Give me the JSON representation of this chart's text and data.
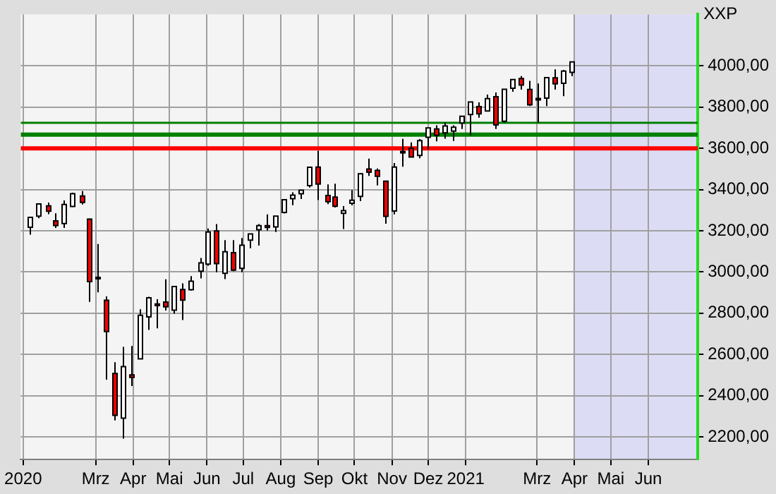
{
  "chart_data": {
    "type": "candlestick",
    "ylabel": "XXP",
    "x": [
      "2020-01-06",
      "2020-01-13",
      "2020-01-21",
      "2020-01-27",
      "2020-02-03",
      "2020-02-10",
      "2020-02-18",
      "2020-02-24",
      "2020-03-02",
      "2020-03-09",
      "2020-03-16",
      "2020-03-23",
      "2020-03-30",
      "2020-04-06",
      "2020-04-13",
      "2020-04-20",
      "2020-04-27",
      "2020-05-04",
      "2020-05-11",
      "2020-05-18",
      "2020-05-26",
      "2020-06-01",
      "2020-06-08",
      "2020-06-15",
      "2020-06-22",
      "2020-06-29",
      "2020-07-06",
      "2020-07-13",
      "2020-07-20",
      "2020-07-27",
      "2020-08-03",
      "2020-08-10",
      "2020-08-17",
      "2020-08-24",
      "2020-08-31",
      "2020-09-08",
      "2020-09-14",
      "2020-09-21",
      "2020-09-28",
      "2020-10-05",
      "2020-10-12",
      "2020-10-19",
      "2020-10-26",
      "2020-11-02",
      "2020-11-09",
      "2020-11-16",
      "2020-11-23",
      "2020-11-30",
      "2020-12-07",
      "2020-12-14",
      "2020-12-21",
      "2020-12-28",
      "2021-01-04",
      "2021-01-11",
      "2021-01-19",
      "2021-01-25",
      "2021-02-01",
      "2021-02-08",
      "2021-02-16",
      "2021-02-22",
      "2021-03-01",
      "2021-03-08",
      "2021-03-15",
      "2021-03-22",
      "2021-03-29"
    ],
    "ohlc": [
      [
        3217,
        3267,
        3181,
        3265
      ],
      [
        3271,
        3330,
        3261,
        3330
      ],
      [
        3321,
        3337,
        3281,
        3295
      ],
      [
        3248,
        3285,
        3214,
        3226
      ],
      [
        3235,
        3347,
        3214,
        3328
      ],
      [
        3318,
        3385,
        3316,
        3380
      ],
      [
        3369,
        3393,
        3328,
        3338
      ],
      [
        3257,
        3259,
        2855,
        2954
      ],
      [
        2974,
        3136,
        2901,
        2972
      ],
      [
        2863,
        2882,
        2478,
        2711
      ],
      [
        2508,
        2562,
        2280,
        2305
      ],
      [
        2291,
        2637,
        2192,
        2541
      ],
      [
        2501,
        2641,
        2447,
        2489
      ],
      [
        2579,
        2819,
        2577,
        2790
      ],
      [
        2782,
        2880,
        2719,
        2875
      ],
      [
        2845,
        2868,
        2727,
        2837
      ],
      [
        2854,
        2965,
        2813,
        2831
      ],
      [
        2815,
        2932,
        2798,
        2930
      ],
      [
        2915,
        2945,
        2767,
        2864
      ],
      [
        2914,
        2980,
        2910,
        2955
      ],
      [
        3004,
        3068,
        2969,
        3044
      ],
      [
        3038,
        3211,
        3031,
        3194
      ],
      [
        3199,
        3233,
        2999,
        3041
      ],
      [
        2994,
        3155,
        2966,
        3098
      ],
      [
        3094,
        3155,
        3004,
        3009
      ],
      [
        3018,
        3165,
        2999,
        3130
      ],
      [
        3155,
        3186,
        3115,
        3185
      ],
      [
        3205,
        3233,
        3128,
        3225
      ],
      [
        3225,
        3280,
        3201,
        3216
      ],
      [
        3219,
        3272,
        3194,
        3271
      ],
      [
        3289,
        3352,
        3284,
        3351
      ],
      [
        3356,
        3387,
        3324,
        3373
      ],
      [
        3380,
        3399,
        3354,
        3397
      ],
      [
        3419,
        3509,
        3410,
        3508
      ],
      [
        3509,
        3588,
        3349,
        3427
      ],
      [
        3371,
        3425,
        3329,
        3341
      ],
      [
        3364,
        3429,
        3313,
        3319
      ],
      [
        3285,
        3320,
        3209,
        3298
      ],
      [
        3334,
        3397,
        3323,
        3348
      ],
      [
        3367,
        3479,
        3344,
        3477
      ],
      [
        3500,
        3550,
        3466,
        3484
      ],
      [
        3493,
        3502,
        3420,
        3465
      ],
      [
        3441,
        3441,
        3234,
        3270
      ],
      [
        3296,
        3529,
        3280,
        3509
      ],
      [
        3583,
        3646,
        3511,
        3585
      ],
      [
        3600,
        3629,
        3556,
        3558
      ],
      [
        3566,
        3645,
        3552,
        3638
      ],
      [
        3654,
        3699,
        3595,
        3699
      ],
      [
        3694,
        3712,
        3634,
        3663
      ],
      [
        3675,
        3726,
        3647,
        3709
      ],
      [
        3684,
        3712,
        3636,
        3703
      ],
      [
        3723,
        3756,
        3694,
        3756
      ],
      [
        3764,
        3827,
        3663,
        3825
      ],
      [
        3803,
        3823,
        3749,
        3768
      ],
      [
        3781,
        3861,
        3780,
        3841
      ],
      [
        3851,
        3871,
        3694,
        3714
      ],
      [
        3732,
        3887,
        3725,
        3887
      ],
      [
        3892,
        3935,
        3875,
        3934
      ],
      [
        3939,
        3951,
        3885,
        3907
      ],
      [
        3886,
        3928,
        3805,
        3811
      ],
      [
        3842,
        3915,
        3723,
        3842
      ],
      [
        3844,
        3944,
        3805,
        3943
      ],
      [
        3942,
        3983,
        3885,
        3913
      ],
      [
        3916,
        3981,
        3853,
        3975
      ],
      [
        3969,
        4019,
        3950,
        4019
      ]
    ],
    "colors": [
      "#ffffff",
      "#ffffff",
      "#ff0000",
      "#ff0000",
      "#ffffff",
      "#ffffff",
      "#ff0000",
      "#ff0000",
      "#ff0000",
      "#ff0000",
      "#ff0000",
      "#ffffff",
      "#ff0000",
      "#ffffff",
      "#ffffff",
      "#ff0000",
      "#ff0000",
      "#ffffff",
      "#ff0000",
      "#ffffff",
      "#ffffff",
      "#ffffff",
      "#ff0000",
      "#ffffff",
      "#ff0000",
      "#ffffff",
      "#ffffff",
      "#ffffff",
      "#ff0000",
      "#ffffff",
      "#ffffff",
      "#ffffff",
      "#ffffff",
      "#ffffff",
      "#ff0000",
      "#ff0000",
      "#ff0000",
      "#ffffff",
      "#ffffff",
      "#ffffff",
      "#ff0000",
      "#ff0000",
      "#ff0000",
      "#ffffff",
      "#ffffff",
      "#ff0000",
      "#ffffff",
      "#ffffff",
      "#ff0000",
      "#ffffff",
      "#ffffff",
      "#ffffff",
      "#ffffff",
      "#ff0000",
      "#ffffff",
      "#ff0000",
      "#ffffff",
      "#ffffff",
      "#ff0000",
      "#ff0000",
      "#ff0000",
      "#ffffff",
      "#ff0000",
      "#ffffff",
      "#ffffff"
    ],
    "xlim": [
      "2019-12-30",
      "2021-07-12"
    ],
    "xticks": [
      {
        "value": "2020-01-01",
        "label": "2020"
      },
      {
        "value": "2020-03-01",
        "label": "Mrz"
      },
      {
        "value": "2020-04-01",
        "label": "Apr"
      },
      {
        "value": "2020-05-01",
        "label": "Mai"
      },
      {
        "value": "2020-06-01",
        "label": "Jun"
      },
      {
        "value": "2020-07-01",
        "label": "Jul"
      },
      {
        "value": "2020-08-01",
        "label": "Aug"
      },
      {
        "value": "2020-09-01",
        "label": "Sep"
      },
      {
        "value": "2020-10-01",
        "label": "Okt"
      },
      {
        "value": "2020-11-01",
        "label": "Nov"
      },
      {
        "value": "2020-12-01",
        "label": "Dez"
      },
      {
        "value": "2021-01-01",
        "label": "2021"
      },
      {
        "value": "2021-03-01",
        "label": "Mrz"
      },
      {
        "value": "2021-04-01",
        "label": "Apr"
      },
      {
        "value": "2021-05-01",
        "label": "Mai"
      },
      {
        "value": "2021-06-01",
        "label": "Jun"
      }
    ],
    "ylim": [
      2090,
      4250
    ],
    "yticks": [
      {
        "value": 2200,
        "label": "2200,00"
      },
      {
        "value": 2400,
        "label": "2400,00"
      },
      {
        "value": 2600,
        "label": "2600,00"
      },
      {
        "value": 2800,
        "label": "2800,00"
      },
      {
        "value": 3000,
        "label": "3000,00"
      },
      {
        "value": 3200,
        "label": "3200,00"
      },
      {
        "value": 3400,
        "label": "3400,00"
      },
      {
        "value": 3600,
        "label": "3600,00"
      },
      {
        "value": 3800,
        "label": "3800,00"
      },
      {
        "value": 4000,
        "label": "4000,00"
      }
    ],
    "ref_lines": [
      {
        "axis": "y",
        "value": 3667,
        "color": "#008000"
      },
      {
        "axis": "y",
        "value": 3724,
        "color": "#008000"
      },
      {
        "axis": "y",
        "value": 3600,
        "color": "#ff0000"
      }
    ],
    "bands": [
      {
        "axis": "x",
        "from": "2021-03-31",
        "to": "2021-07-12",
        "color": "#dcdcf4"
      }
    ],
    "grid": true
  }
}
